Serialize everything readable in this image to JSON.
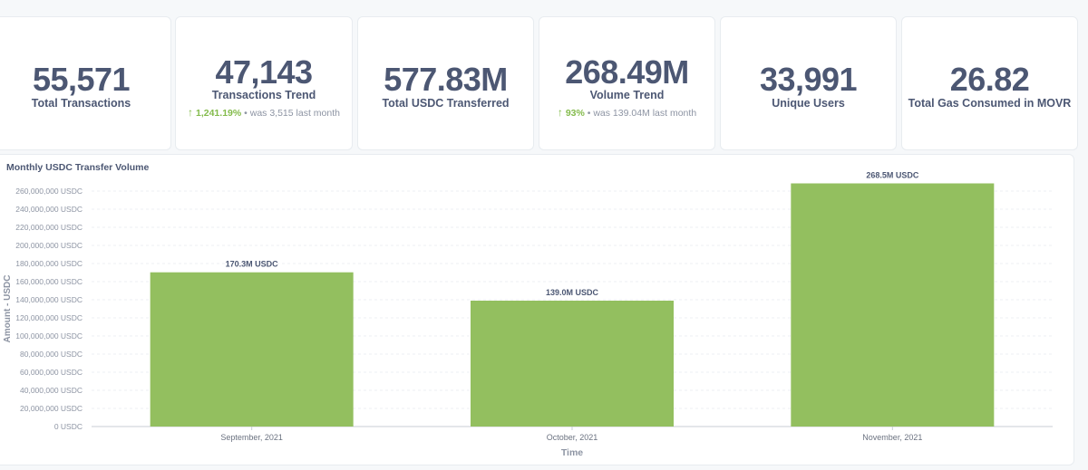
{
  "cards": [
    {
      "value": "55,571",
      "label": "Total Transactions"
    },
    {
      "value": "47,143",
      "label": "Transactions Trend",
      "trend_pct": "1,241.19%",
      "trend_was": "was 3,515",
      "trend_period": "last month"
    },
    {
      "value": "577.83M",
      "label": "Total USDC Transferred"
    },
    {
      "value": "268.49M",
      "label": "Volume Trend",
      "trend_pct": "93%",
      "trend_was": "was 139.04M",
      "trend_period": "last month"
    },
    {
      "value": "33,991",
      "label": "Unique Users"
    },
    {
      "value": "26.82",
      "label": "Total Gas Consumed in MOVR"
    }
  ],
  "colors": {
    "bar": "#93bf5f",
    "text": "#4c5773",
    "trend_up": "#84bb4c",
    "muted": "#8d94a3"
  },
  "chart_data": {
    "type": "bar",
    "title": "Monthly USDC Transfer Volume",
    "xlabel": "Time",
    "ylabel": "Amount - USDC",
    "categories": [
      "September, 2021",
      "October, 2021",
      "November, 2021"
    ],
    "values": [
      170300000,
      139000000,
      268500000
    ],
    "data_labels": [
      "170.3M USDC",
      "139.0M USDC",
      "268.5M USDC"
    ],
    "ylim": [
      0,
      260000000
    ],
    "yticks": [
      0,
      20000000,
      40000000,
      60000000,
      80000000,
      100000000,
      120000000,
      140000000,
      160000000,
      180000000,
      200000000,
      220000000,
      240000000,
      260000000
    ],
    "ytick_labels": [
      "0 USDC",
      "20,000,000 USDC",
      "40,000,000 USDC",
      "60,000,000 USDC",
      "80,000,000 USDC",
      "100,000,000 USDC",
      "120,000,000 USDC",
      "140,000,000 USDC",
      "160,000,000 USDC",
      "180,000,000 USDC",
      "200,000,000 USDC",
      "220,000,000 USDC",
      "240,000,000 USDC",
      "260,000,000 USDC"
    ],
    "grid": true,
    "legend": false
  }
}
